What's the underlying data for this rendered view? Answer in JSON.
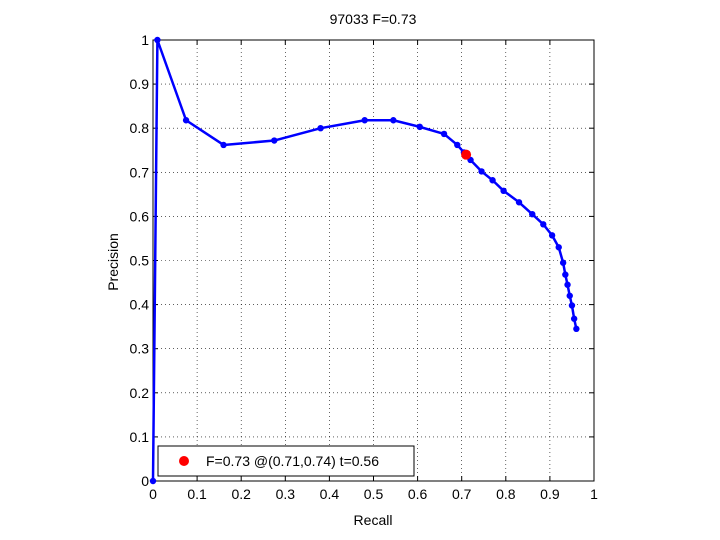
{
  "chart_data": {
    "type": "line",
    "title": "97033 F=0.73",
    "xlabel": "Recall",
    "ylabel": "Precision",
    "xlim": [
      0,
      1
    ],
    "ylim": [
      0,
      1
    ],
    "xticks": [
      0,
      0.1,
      0.2,
      0.3,
      0.4,
      0.5,
      0.6,
      0.7,
      0.8,
      0.9,
      1
    ],
    "yticks": [
      0,
      0.1,
      0.2,
      0.3,
      0.4,
      0.5,
      0.6,
      0.7,
      0.8,
      0.9,
      1
    ],
    "xtick_labels": [
      "0",
      "0.1",
      "0.2",
      "0.3",
      "0.4",
      "0.5",
      "0.6",
      "0.7",
      "0.8",
      "0.9",
      "1"
    ],
    "ytick_labels": [
      "0",
      "0.1",
      "0.2",
      "0.3",
      "0.4",
      "0.5",
      "0.6",
      "0.7",
      "0.8",
      "0.9",
      "1"
    ],
    "grid": true,
    "legend_position": "bottom-left",
    "series": [
      {
        "color": "#0000ff",
        "x": [
          0,
          0.01,
          0.075,
          0.16,
          0.275,
          0.38,
          0.48,
          0.545,
          0.605,
          0.66,
          0.69,
          0.705,
          0.72,
          0.745,
          0.77,
          0.795,
          0.83,
          0.86,
          0.885,
          0.905,
          0.92,
          0.93,
          0.935,
          0.94,
          0.945,
          0.95,
          0.955,
          0.96
        ],
        "y": [
          0,
          1,
          0.818,
          0.762,
          0.772,
          0.8,
          0.818,
          0.818,
          0.803,
          0.787,
          0.762,
          0.745,
          0.728,
          0.702,
          0.682,
          0.658,
          0.632,
          0.605,
          0.582,
          0.557,
          0.53,
          0.495,
          0.468,
          0.445,
          0.42,
          0.398,
          0.368,
          0.345
        ]
      }
    ],
    "highlight_point": {
      "color": "#ff0000",
      "x": 0.71,
      "y": 0.74,
      "label": "F=0.73 @(0.71,0.74) t=0.56"
    }
  }
}
